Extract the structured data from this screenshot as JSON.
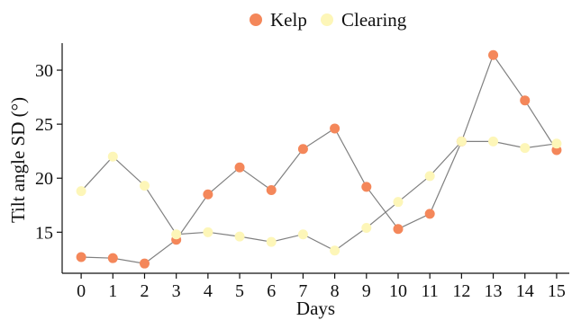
{
  "chart_data": {
    "type": "scatter",
    "title": "",
    "xlabel": "Days",
    "ylabel": "Tilt angle SD (°)",
    "x": [
      0,
      1,
      2,
      3,
      4,
      5,
      6,
      7,
      8,
      9,
      10,
      11,
      12,
      13,
      14,
      15
    ],
    "xlim": [
      -0.6,
      15.4
    ],
    "ylim": [
      11.2,
      32.5
    ],
    "xticks": [
      0,
      1,
      2,
      3,
      4,
      5,
      6,
      7,
      8,
      9,
      10,
      11,
      12,
      13,
      14,
      15
    ],
    "yticks": [
      15,
      20,
      25,
      30
    ],
    "grid": false,
    "legend_position": "top",
    "line_color": "#808080",
    "series": [
      {
        "name": "Kelp",
        "color": "#f4875a",
        "values": [
          12.7,
          12.6,
          12.1,
          14.3,
          18.5,
          21.0,
          18.9,
          22.7,
          24.6,
          19.2,
          15.3,
          16.7,
          23.4,
          31.4,
          27.2,
          22.6
        ]
      },
      {
        "name": "Clearing",
        "color": "#fdf6b8",
        "values": [
          18.8,
          22.0,
          19.3,
          14.8,
          15.0,
          14.6,
          14.1,
          14.8,
          13.3,
          15.4,
          17.8,
          20.2,
          23.4,
          23.4,
          22.8,
          23.2
        ]
      }
    ]
  }
}
